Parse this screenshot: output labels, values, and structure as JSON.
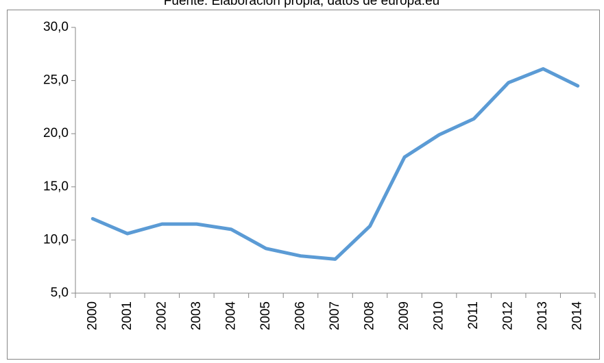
{
  "chart_data": {
    "type": "line",
    "title": "Fuente: Elaboración propia, datos de europa.eu",
    "categories": [
      "2000",
      "2001",
      "2002",
      "2003",
      "2004",
      "2005",
      "2006",
      "2007",
      "2008",
      "2009",
      "2010",
      "2011",
      "2012",
      "2013",
      "2014"
    ],
    "values": [
      12.0,
      10.6,
      11.5,
      11.5,
      11.0,
      9.2,
      8.5,
      8.2,
      11.3,
      17.8,
      19.9,
      21.4,
      24.8,
      26.1,
      24.5
    ],
    "color": "#5b9bd5",
    "ylim": [
      5,
      30
    ],
    "yticks": [
      {
        "value": 5,
        "label": "5,0"
      },
      {
        "value": 10,
        "label": "10,0"
      },
      {
        "value": 15,
        "label": "15,0"
      },
      {
        "value": 20,
        "label": "20,0"
      },
      {
        "value": 25,
        "label": "25,0"
      },
      {
        "value": 30,
        "label": "30,0"
      }
    ],
    "grid": false
  }
}
